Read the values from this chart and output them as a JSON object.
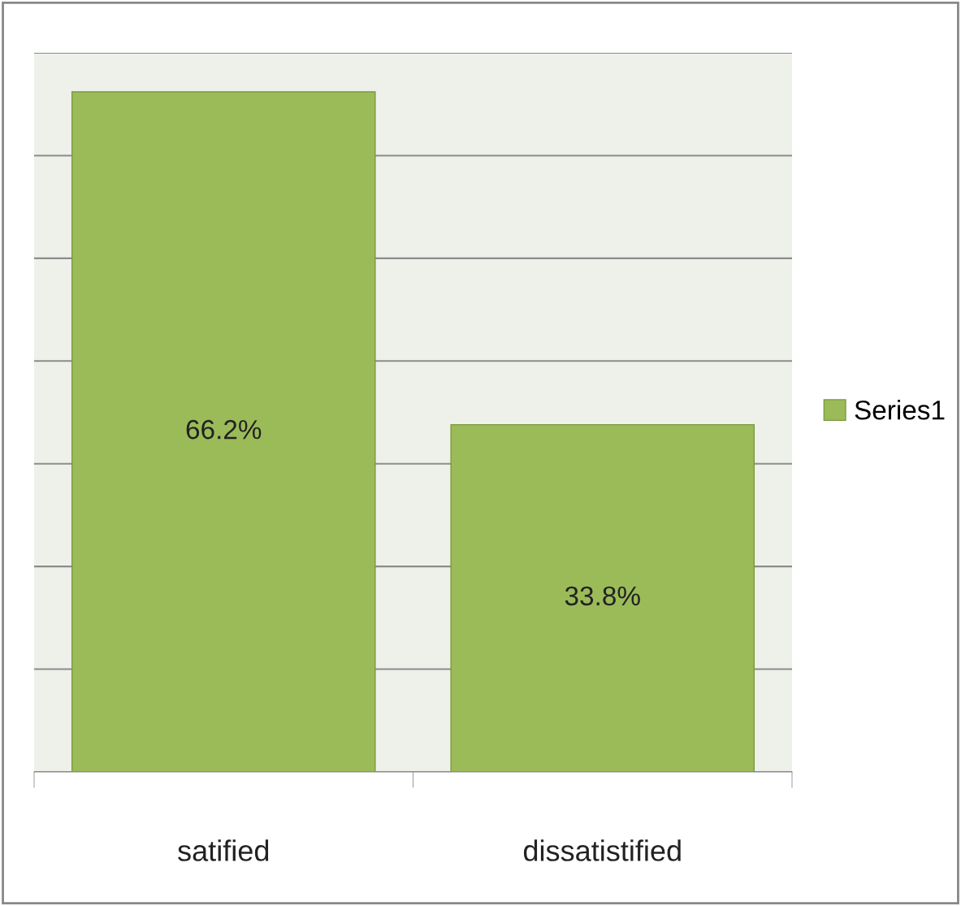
{
  "chart_data": {
    "type": "bar",
    "categories": [
      "satified",
      "dissatistified"
    ],
    "series": [
      {
        "name": "Series1",
        "color": "#9bbb59",
        "values": [
          66.2,
          33.8
        ],
        "value_labels": [
          "66.2%",
          "33.8%"
        ]
      }
    ],
    "ylim": [
      0,
      70
    ],
    "yticks": [
      {
        "value": 0,
        "label": null
      },
      {
        "value": 10,
        "label": null
      },
      {
        "value": 20,
        "label": null
      },
      {
        "value": 30,
        "label": null
      },
      {
        "value": 40,
        "label": null
      },
      {
        "value": 50,
        "label": null
      },
      {
        "value": 60,
        "label": null
      },
      {
        "value": 70,
        "label": null
      }
    ],
    "tick_labels": "x",
    "grid": "y",
    "legend": "right"
  }
}
